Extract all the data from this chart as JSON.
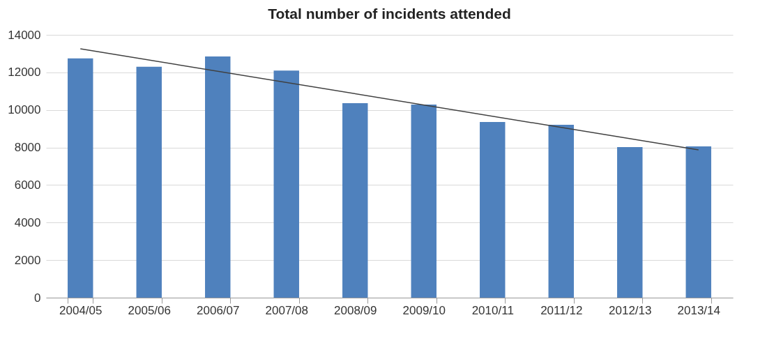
{
  "chart_data": {
    "type": "bar",
    "title": "Total number of incidents attended",
    "categories": [
      "2004/05",
      "2005/06",
      "2006/07",
      "2007/08",
      "2008/09",
      "2009/10",
      "2010/11",
      "2011/12",
      "2012/13",
      "2013/14"
    ],
    "series": [
      {
        "color": "#4f81bd",
        "values": [
          12750,
          12300,
          12850,
          12100,
          10360,
          10290,
          9360,
          9210,
          8020,
          8060
        ]
      },
      {
        "type": "line",
        "color": "#404040",
        "x": [
          "2004/05",
          "2013/14"
        ],
        "values": [
          13260,
          7870
        ]
      }
    ],
    "ylim": [
      0,
      14000
    ],
    "yticks": [
      0,
      2000,
      4000,
      6000,
      8000,
      10000,
      12000,
      14000
    ],
    "grid": "y"
  }
}
